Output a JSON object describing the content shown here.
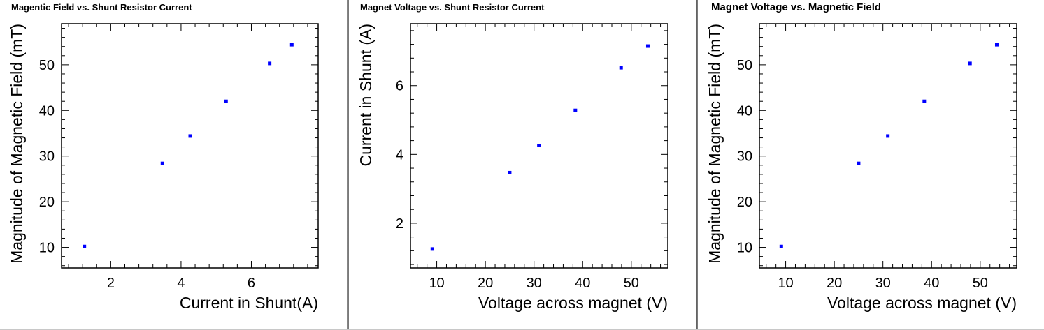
{
  "chart_data": [
    {
      "type": "scatter",
      "title": "Magentic Field vs. Shunt Resistor Current",
      "xlabel": "Current in Shunt(A)",
      "ylabel": "Magnitude of Magnetic Field (mT)",
      "xlim": [
        0.6,
        7.9
      ],
      "ylim": [
        5.5,
        59
      ],
      "xticks": [
        2,
        4,
        6
      ],
      "yticks": [
        10,
        20,
        30,
        40,
        50
      ],
      "x": [
        1.25,
        3.47,
        4.26,
        5.28,
        6.52,
        7.15
      ],
      "y": [
        10.2,
        28.4,
        34.4,
        42.0,
        50.3,
        54.4
      ],
      "marker_color": "#0000ff",
      "grid": false
    },
    {
      "type": "scatter",
      "title": "Magnet Voltage vs. Shunt Resistor Current",
      "xlabel": "Voltage across magnet (V)",
      "ylabel": "Current in Shunt (A)",
      "xlim": [
        4.6,
        57.5
      ],
      "ylim": [
        0.7,
        7.8
      ],
      "xticks": [
        10,
        20,
        30,
        40,
        50
      ],
      "yticks": [
        2,
        4,
        6
      ],
      "x": [
        9.1,
        25.0,
        31.0,
        38.5,
        47.9,
        53.4
      ],
      "y": [
        1.25,
        3.47,
        4.26,
        5.28,
        6.52,
        7.15
      ],
      "marker_color": "#0000ff",
      "grid": false
    },
    {
      "type": "scatter",
      "title": "Magnet Voltage vs. Magnetic Field",
      "xlabel": "Voltage across magnet (V)",
      "ylabel": "Magnitude of Magnetic Field (mT)",
      "xlim": [
        4.6,
        57.5
      ],
      "ylim": [
        5.5,
        59
      ],
      "xticks": [
        10,
        20,
        30,
        40,
        50
      ],
      "yticks": [
        10,
        20,
        30,
        40,
        50
      ],
      "x": [
        9.1,
        25.0,
        31.0,
        38.5,
        47.9,
        53.4
      ],
      "y": [
        10.2,
        28.4,
        34.4,
        42.0,
        50.3,
        54.4
      ],
      "marker_color": "#0000ff",
      "grid": false
    }
  ]
}
